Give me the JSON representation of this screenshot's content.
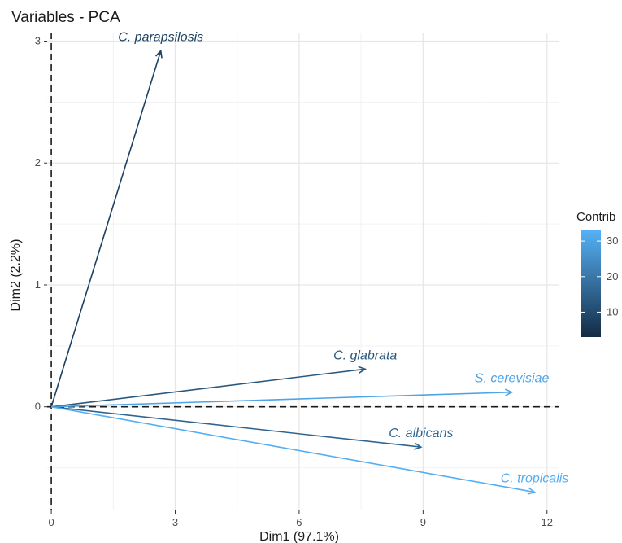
{
  "chart_data": {
    "type": "scatter",
    "title": "Variables - PCA",
    "xlabel": "Dim1 (97.1%)",
    "ylabel": "Dim2 (2.2%)",
    "xlim": [
      -0.1,
      12.3
    ],
    "ylim": [
      -0.85,
      3.07
    ],
    "xticks": [
      0,
      3,
      6,
      9,
      12
    ],
    "yticks": [
      0,
      1,
      2,
      3
    ],
    "grid": true,
    "legend": {
      "title": "Contrib",
      "placement": "right",
      "ticks": [
        10,
        20,
        30
      ],
      "range": [
        3,
        33
      ],
      "color_low": "#132b43",
      "color_high": "#56b1f7"
    },
    "vectors": [
      {
        "label": "C. parapsilosis",
        "x": 2.65,
        "y": 2.92,
        "contrib": 8
      },
      {
        "label": "C. glabrata",
        "x": 7.6,
        "y": 0.31,
        "contrib": 13
      },
      {
        "label": "S. cerevisiae",
        "x": 11.15,
        "y": 0.12,
        "contrib": 30
      },
      {
        "label": "C. albicans",
        "x": 8.95,
        "y": -0.33,
        "contrib": 16
      },
      {
        "label": "C. tropicalis",
        "x": 11.7,
        "y": -0.7,
        "contrib": 32
      }
    ]
  }
}
